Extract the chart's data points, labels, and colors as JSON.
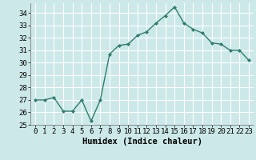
{
  "x": [
    0,
    1,
    2,
    3,
    4,
    5,
    6,
    7,
    8,
    9,
    10,
    11,
    12,
    13,
    14,
    15,
    16,
    17,
    18,
    19,
    20,
    21,
    22,
    23
  ],
  "y": [
    27.0,
    27.0,
    27.2,
    26.1,
    26.1,
    27.0,
    25.3,
    27.0,
    30.7,
    31.4,
    31.5,
    32.2,
    32.5,
    33.2,
    33.8,
    34.5,
    33.2,
    32.7,
    32.4,
    31.6,
    31.5,
    31.0,
    31.0,
    30.2
  ],
  "line_color": "#2e7d6e",
  "marker": "D",
  "markersize": 2,
  "linewidth": 1.0,
  "xlabel": "Humidex (Indice chaleur)",
  "ylim": [
    25,
    34.8
  ],
  "xlim": [
    -0.5,
    23.5
  ],
  "yticks": [
    25,
    26,
    27,
    28,
    29,
    30,
    31,
    32,
    33,
    34
  ],
  "xtick_labels": [
    "0",
    "1",
    "2",
    "3",
    "4",
    "5",
    "6",
    "7",
    "8",
    "9",
    "10",
    "11",
    "12",
    "13",
    "14",
    "15",
    "16",
    "17",
    "18",
    "19",
    "20",
    "21",
    "22",
    "23"
  ],
  "background_color": "#cce8e8",
  "grid_color": "#ffffff",
  "tick_fontsize": 6.5,
  "xlabel_fontsize": 7.5
}
